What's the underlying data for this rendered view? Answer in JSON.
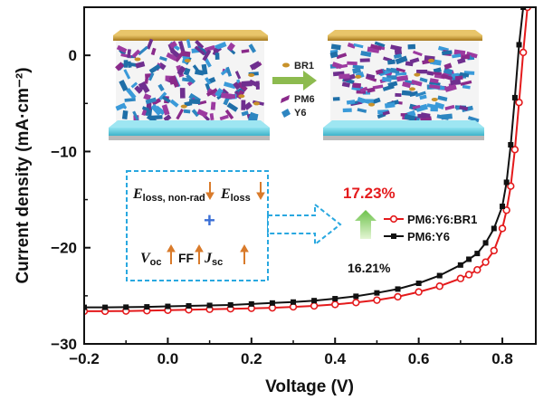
{
  "chart_data": {
    "type": "line",
    "xlabel": "Voltage (V)",
    "ylabel": "Current density (mA·cm⁻²)",
    "xlim": [
      -0.2,
      0.88
    ],
    "ylim": [
      -30,
      5
    ],
    "xticks": [
      "−0.2",
      "0.0",
      "0.2",
      "0.4",
      "0.6",
      "0.8"
    ],
    "xtick_values": [
      -0.2,
      0,
      0.2,
      0.4,
      0.6,
      0.8
    ],
    "yticks": [
      "−30",
      "−20",
      "−10",
      "0"
    ],
    "ytick_values": [
      -30,
      -20,
      -10,
      0
    ],
    "legend_position": "center-right",
    "series": [
      {
        "name": "PM6:Y6:BR1",
        "color": "#e41a1c",
        "marker": "circle",
        "x": [
          -0.2,
          -0.15,
          -0.1,
          -0.05,
          0.0,
          0.05,
          0.1,
          0.15,
          0.2,
          0.25,
          0.3,
          0.35,
          0.4,
          0.45,
          0.5,
          0.55,
          0.6,
          0.65,
          0.7,
          0.72,
          0.74,
          0.76,
          0.78,
          0.8,
          0.81,
          0.82,
          0.83,
          0.84,
          0.85,
          0.86
        ],
        "y": [
          -26.6,
          -26.6,
          -26.58,
          -26.55,
          -26.5,
          -26.45,
          -26.4,
          -26.35,
          -26.3,
          -26.25,
          -26.15,
          -26.05,
          -25.9,
          -25.7,
          -25.45,
          -25.1,
          -24.6,
          -24.0,
          -23.2,
          -22.8,
          -22.3,
          -21.5,
          -20.3,
          -18.0,
          -16.1,
          -13.6,
          -9.8,
          -4.9,
          0.3,
          5.0
        ]
      },
      {
        "name": "PM6:Y6",
        "color": "#111111",
        "marker": "square",
        "x": [
          -0.2,
          -0.15,
          -0.1,
          -0.05,
          0.0,
          0.05,
          0.1,
          0.15,
          0.2,
          0.25,
          0.3,
          0.35,
          0.4,
          0.45,
          0.5,
          0.55,
          0.6,
          0.65,
          0.7,
          0.72,
          0.74,
          0.76,
          0.78,
          0.8,
          0.81,
          0.82,
          0.83,
          0.84,
          0.85
        ],
        "y": [
          -26.2,
          -26.2,
          -26.18,
          -26.15,
          -26.1,
          -26.05,
          -26.0,
          -25.95,
          -25.85,
          -25.75,
          -25.65,
          -25.5,
          -25.3,
          -25.05,
          -24.7,
          -24.3,
          -23.7,
          -22.9,
          -21.8,
          -21.2,
          -20.6,
          -19.5,
          -18.0,
          -15.7,
          -13.2,
          -9.3,
          -4.4,
          1.1,
          5.0
        ]
      }
    ]
  },
  "inset": {
    "legend_items": [
      {
        "label": "BR1",
        "color": "#c8922a"
      },
      {
        "label": "PM6",
        "color": "#8a2a8a"
      },
      {
        "label": "Y6",
        "color": "#2e86c1"
      }
    ],
    "efficiency_high": "17.23%",
    "efficiency_high_color": "#e41a1c",
    "efficiency_low": "16.21%",
    "eloss_label": "E",
    "eloss_nonrad_sub": "loss, non-rad",
    "eloss_sub": "loss",
    "voc_label": "V",
    "voc_sub": "oc",
    "ff_label": "FF",
    "jsc_label": "J",
    "jsc_sub": "sc",
    "plus": "+",
    "box_color": "#29a8e0",
    "arrow_color": "#d97b2b"
  }
}
